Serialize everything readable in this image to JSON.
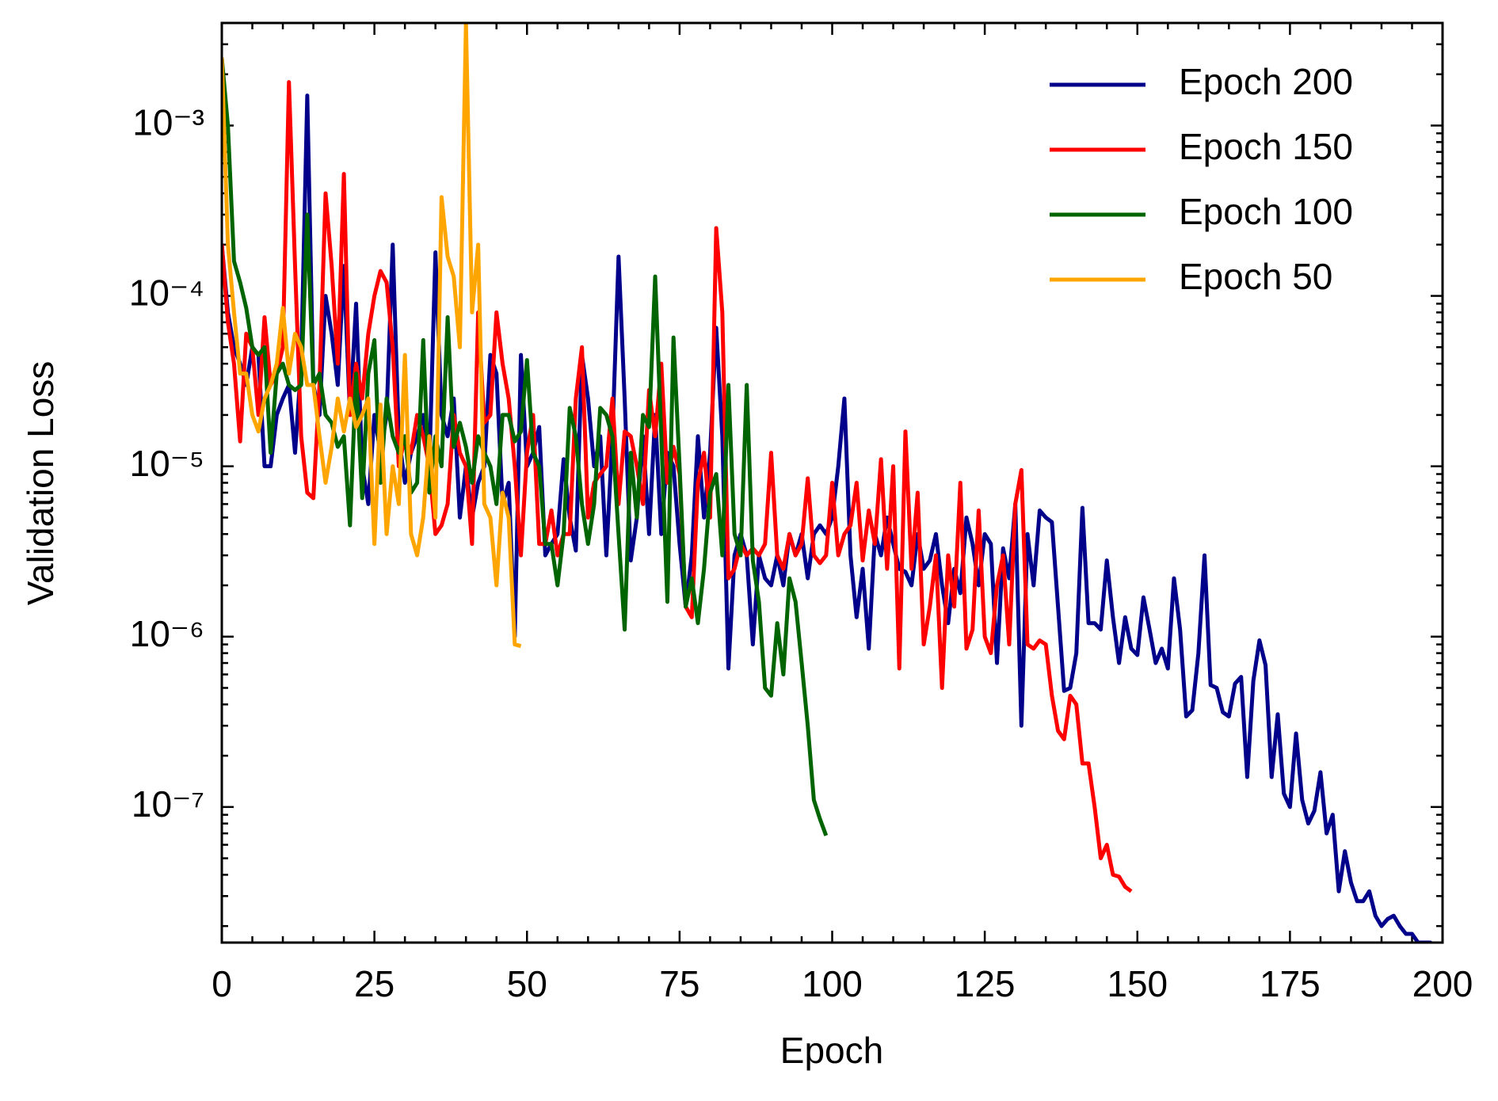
{
  "chart_data": {
    "type": "line",
    "xlabel": "Epoch",
    "ylabel": "Validation Loss",
    "log_y": true,
    "grid": false,
    "legend": "upper right",
    "xlim": [
      0,
      200
    ],
    "xticks": [
      0,
      25,
      50,
      75,
      100,
      125,
      150,
      175,
      200
    ],
    "ylim": [
      1.6e-08,
      0.004
    ],
    "yticks": [
      {
        "value": 1e-07,
        "label": "10⁻⁷"
      },
      {
        "value": 1e-06,
        "label": "10⁻⁶"
      },
      {
        "value": 1e-05,
        "label": "10⁻⁵"
      },
      {
        "value": 0.0001,
        "label": "10⁻⁴"
      },
      {
        "value": 0.001,
        "label": "10⁻³"
      }
    ],
    "x": [
      0,
      1,
      2,
      3,
      4,
      5,
      6,
      7,
      8,
      9,
      10,
      11,
      12,
      13,
      14,
      15,
      16,
      17,
      18,
      19,
      20,
      21,
      22,
      23,
      24,
      25,
      26,
      27,
      28,
      29,
      30,
      31,
      32,
      33,
      34,
      35,
      36,
      37,
      38,
      39,
      40,
      41,
      42,
      43,
      44,
      45,
      46,
      47,
      48,
      49,
      50,
      51,
      52,
      53,
      54,
      55,
      56,
      57,
      58,
      59,
      60,
      61,
      62,
      63,
      64,
      65,
      66,
      67,
      68,
      69,
      70,
      71,
      72,
      73,
      74,
      75,
      76,
      77,
      78,
      79,
      80,
      81,
      82,
      83,
      84,
      85,
      86,
      87,
      88,
      89,
      90,
      91,
      92,
      93,
      94,
      95,
      96,
      97,
      98,
      99,
      100,
      101,
      102,
      103,
      104,
      105,
      106,
      107,
      108,
      109,
      110,
      111,
      112,
      113,
      114,
      115,
      116,
      117,
      118,
      119,
      120,
      121,
      122,
      123,
      124,
      125,
      126,
      127,
      128,
      129,
      130,
      131,
      132,
      133,
      134,
      135,
      136,
      137,
      138,
      139,
      140,
      141,
      142,
      143,
      144,
      145,
      146,
      147,
      148,
      149,
      150,
      151,
      152,
      153,
      154,
      155,
      156,
      157,
      158,
      159,
      160,
      161,
      162,
      163,
      164,
      165,
      166,
      167,
      168,
      169,
      170,
      171,
      172,
      173,
      174,
      175,
      176,
      177,
      178,
      179,
      180,
      181,
      182,
      183,
      184,
      185,
      186,
      187,
      188,
      189,
      190,
      191,
      192,
      193,
      194,
      195,
      196,
      197,
      198,
      199
    ],
    "series": [
      {
        "name": "Epoch 200",
        "color": "#00008b",
        "values": [
          0.0002,
          8e-05,
          5e-05,
          4e-05,
          3e-05,
          5e-05,
          4.5e-05,
          1e-05,
          1e-05,
          2e-05,
          2.5e-05,
          3e-05,
          1.2e-05,
          4e-05,
          0.0015,
          3e-05,
          2e-05,
          0.0001,
          6e-05,
          3e-05,
          0.00015,
          2e-05,
          9e-05,
          1e-05,
          6e-06,
          2e-05,
          1.2e-05,
          2e-05,
          0.0002,
          1.5e-05,
          8e-06,
          1.2e-05,
          1.5e-05,
          2e-05,
          1e-05,
          0.00018,
          2e-05,
          1.5e-05,
          2.5e-05,
          5e-06,
          1e-05,
          5e-06,
          8e-06,
          1e-05,
          4.5e-05,
          3.5e-05,
          6e-06,
          8e-06,
          1e-06,
          4.5e-05,
          1e-05,
          1.2e-05,
          1.7e-05,
          3e-06,
          3.5e-06,
          4e-06,
          1.1e-05,
          5e-06,
          3.2e-06,
          4.5e-05,
          2.5e-05,
          1e-05,
          1.5e-05,
          3e-06,
          1.5e-05,
          0.00017,
          2.5e-05,
          2.8e-06,
          5e-06,
          1.5e-05,
          4e-06,
          2e-05,
          4e-06,
          1.2e-05,
          1e-05,
          3.5e-06,
          1.5e-06,
          3e-06,
          1.5e-05,
          5e-06,
          1.2e-05,
          6.5e-05,
          1.5e-05,
          6.5e-07,
          3e-06,
          4e-06,
          3e-06,
          9e-07,
          3e-06,
          2.2e-06,
          2e-06,
          3e-06,
          2e-06,
          4e-06,
          3e-06,
          4e-06,
          2.2e-06,
          4e-06,
          4.5e-06,
          4e-06,
          5e-06,
          1e-05,
          2.5e-05,
          3e-06,
          1.3e-06,
          2.5e-06,
          8.5e-07,
          4e-06,
          3e-06,
          5e-06,
          3.5e-06,
          2.5e-06,
          2.4e-06,
          2e-06,
          4e-06,
          2.5e-06,
          2.8e-06,
          4e-06,
          2e-06,
          1.2e-06,
          2.5e-06,
          1.8e-06,
          5e-06,
          3.5e-06,
          2e-06,
          4e-06,
          3.5e-06,
          7e-07,
          3.3e-06,
          2.2e-06,
          6e-06,
          3e-07,
          4e-06,
          2e-06,
          5.5e-06,
          5e-06,
          4.7e-06,
          1.5e-06,
          4.8e-07,
          5e-07,
          8e-07,
          5.7e-06,
          1.2e-06,
          1.2e-06,
          1.1e-06,
          2.8e-06,
          1.3e-06,
          7e-07,
          1.3e-06,
          8.5e-07,
          7.8e-07,
          1.7e-06,
          1.1e-06,
          7e-07,
          8.5e-07,
          6.5e-07,
          2.2e-06,
          1.1e-06,
          3.4e-07,
          3.7e-07,
          8e-07,
          3e-06,
          5.2e-07,
          5e-07,
          3.6e-07,
          3.4e-07,
          5.3e-07,
          5.8e-07,
          1.5e-07,
          5.5e-07,
          9.5e-07,
          6.8e-07,
          1.5e-07,
          3.5e-07,
          1.2e-07,
          1e-07,
          2.7e-07,
          1.1e-07,
          8e-08,
          9.5e-08,
          1.6e-07,
          7e-08,
          9e-08,
          3.2e-08,
          5.5e-08,
          3.6e-08,
          2.8e-08,
          2.8e-08,
          3.2e-08,
          2.3e-08,
          2e-08,
          2.2e-08,
          2.3e-08,
          2e-08,
          1.8e-08,
          1.8e-08,
          1.6e-08,
          1.6e-08,
          1.6e-08,
          1.5e-08
        ]
      },
      {
        "name": "Epoch 150",
        "color": "#ff0000",
        "values": [
          0.0002,
          7e-05,
          4e-05,
          1.4e-05,
          6e-05,
          5e-05,
          2e-05,
          7.5e-05,
          3e-05,
          3.5e-05,
          5e-05,
          0.0018,
          0.00015,
          1.5e-05,
          7e-06,
          6.5e-06,
          3e-05,
          0.0004,
          0.00015,
          4e-05,
          0.00052,
          2e-05,
          4e-05,
          2.5e-05,
          6e-05,
          0.0001,
          0.00014,
          0.00012,
          5e-05,
          1e-05,
          1.5e-05,
          1.2e-05,
          2e-05,
          1.5e-05,
          1e-05,
          4e-06,
          4.5e-06,
          6e-06,
          2e-05,
          1.2e-05,
          1e-05,
          3.5e-06,
          8e-05,
          1.8e-05,
          2e-05,
          8e-05,
          4e-05,
          2.5e-05,
          1e-05,
          3e-06,
          1.2e-05,
          2e-05,
          3.5e-06,
          3.5e-06,
          5.5e-06,
          3e-06,
          4e-06,
          4e-06,
          2.5e-05,
          5e-05,
          5e-06,
          8e-06,
          9e-06,
          1e-05,
          2.5e-05,
          6e-06,
          1.6e-05,
          1.5e-05,
          1e-05,
          6e-06,
          2.8e-05,
          1.5e-05,
          4e-05,
          8e-06,
          1.3e-05,
          9e-06,
          1.5e-06,
          1.3e-06,
          8e-06,
          1.2e-05,
          5e-06,
          0.00025,
          8e-05,
          2.2e-06,
          2.5e-06,
          3.5e-06,
          3e-06,
          3.3e-06,
          3e-06,
          3.5e-06,
          1.2e-05,
          3e-06,
          2.5e-06,
          4e-06,
          3e-06,
          3.5e-06,
          8.5e-06,
          3e-06,
          2.7e-06,
          3e-06,
          8e-06,
          3e-06,
          4e-06,
          4.5e-06,
          8e-06,
          2.8e-06,
          5.5e-06,
          3.5e-06,
          1.1e-05,
          2.5e-06,
          1e-05,
          6.5e-07,
          1.6e-05,
          2.5e-06,
          7e-06,
          9e-07,
          1.5e-06,
          3e-06,
          5e-07,
          3e-06,
          1.5e-06,
          8e-06,
          8.5e-07,
          1.1e-06,
          5.5e-06,
          1e-06,
          8e-07,
          2e-06,
          3e-06,
          9e-07,
          6e-06,
          9.5e-06,
          9e-07,
          8.5e-07,
          9.5e-07,
          9e-07,
          4.5e-07,
          2.8e-07,
          2.5e-07,
          4.5e-07,
          4e-07,
          1.8e-07,
          1.8e-07,
          1e-07,
          5e-08,
          6e-08,
          4e-08,
          3.9e-08,
          3.4e-08,
          3.2e-08,
          null,
          null,
          null,
          null,
          null,
          null,
          null,
          null,
          null,
          null,
          null,
          null,
          null,
          null,
          null,
          null,
          null,
          null,
          null,
          null,
          null,
          null,
          null,
          null,
          null,
          null,
          null,
          null,
          null,
          null,
          null,
          null,
          null,
          null,
          null,
          null,
          null,
          null,
          null,
          null,
          null,
          null,
          null,
          null,
          null,
          null,
          null,
          null,
          null,
          null
        ]
      },
      {
        "name": "Epoch 100",
        "color": "#006400",
        "values": [
          0.0025,
          0.001,
          0.00016,
          0.00012,
          8.5e-05,
          5e-05,
          4.5e-05,
          5e-05,
          1.2e-05,
          3.5e-05,
          4e-05,
          3e-05,
          2.8e-05,
          3e-05,
          0.0003,
          3e-05,
          3.5e-05,
          2e-05,
          1.8e-05,
          1.3e-05,
          1.5e-05,
          4.5e-06,
          3.5e-05,
          6.5e-06,
          3.5e-05,
          5.5e-05,
          8e-06,
          2.5e-05,
          1.5e-05,
          1.2e-05,
          1.5e-05,
          7e-06,
          8e-06,
          5.5e-05,
          7e-06,
          1.5e-05,
          1e-05,
          7.5e-05,
          1.3e-05,
          1.8e-05,
          1.3e-05,
          8e-06,
          1.5e-05,
          1.2e-05,
          1e-05,
          6e-06,
          2e-05,
          2e-05,
          1.4e-05,
          1.6e-05,
          4.2e-05,
          1.2e-05,
          1e-05,
          3.5e-06,
          3.5e-06,
          2e-06,
          4e-06,
          2.2e-05,
          1.5e-05,
          6e-06,
          3.5e-06,
          6e-06,
          2.2e-05,
          2e-05,
          1.5e-05,
          4e-06,
          1.1e-06,
          1.2e-05,
          5e-06,
          2e-05,
          1.7e-05,
          0.00013,
          1.5e-05,
          1.6e-06,
          5.7e-05,
          1e-05,
          1.5e-06,
          2.2e-06,
          1.2e-06,
          2.5e-06,
          7e-06,
          9e-06,
          3e-06,
          3e-05,
          4e-06,
          3e-06,
          3e-05,
          2.8e-06,
          1.6e-06,
          5e-07,
          4.5e-07,
          1.2e-06,
          6e-07,
          2.2e-06,
          1.6e-06,
          7e-07,
          3e-07,
          1.1e-07,
          8.5e-08,
          6.8e-08,
          null,
          null,
          null,
          null,
          null,
          null,
          null,
          null,
          null,
          null,
          null,
          null,
          null,
          null,
          null,
          null,
          null,
          null,
          null,
          null,
          null,
          null,
          null,
          null,
          null,
          null,
          null,
          null,
          null,
          null,
          null,
          null,
          null,
          null,
          null,
          null,
          null,
          null,
          null,
          null,
          null,
          null,
          null,
          null,
          null,
          null,
          null,
          null,
          null,
          null,
          null,
          null,
          null,
          null,
          null,
          null,
          null,
          null,
          null,
          null,
          null,
          null,
          null,
          null,
          null,
          null,
          null,
          null,
          null,
          null,
          null,
          null,
          null,
          null,
          null,
          null,
          null,
          null,
          null,
          null,
          null,
          null,
          null,
          null,
          null,
          null,
          null,
          null,
          null,
          null,
          null,
          null,
          null,
          null,
          null,
          null,
          null,
          null,
          null,
          null
        ]
      },
      {
        "name": "Epoch 50",
        "color": "#ffa500",
        "values": [
          0.0025,
          0.0002,
          8e-05,
          3.5e-05,
          3.5e-05,
          2e-05,
          1.6e-05,
          2.5e-05,
          3e-05,
          4e-05,
          8.5e-05,
          3.5e-05,
          6e-05,
          5e-05,
          3e-05,
          3e-05,
          1.5e-05,
          8e-06,
          1.3e-05,
          2.5e-05,
          1.6e-05,
          2.5e-05,
          1.7e-05,
          2e-05,
          2.5e-05,
          3.5e-06,
          2.3e-05,
          4e-06,
          1e-05,
          6e-06,
          4.5e-05,
          4e-06,
          3e-06,
          5e-06,
          1.5e-05,
          5e-06,
          0.00038,
          0.00017,
          0.00013,
          5e-05,
          0.004,
          8e-05,
          0.0002,
          6e-06,
          5e-06,
          2e-06,
          7e-06,
          5e-06,
          9e-07,
          8.8e-07,
          null,
          null,
          null,
          null,
          null,
          null,
          null,
          null,
          null,
          null,
          null,
          null,
          null,
          null,
          null,
          null,
          null,
          null,
          null,
          null,
          null,
          null,
          null,
          null,
          null,
          null,
          null,
          null,
          null,
          null,
          null,
          null,
          null,
          null,
          null,
          null,
          null,
          null,
          null,
          null,
          null,
          null,
          null,
          null,
          null,
          null,
          null,
          null,
          null,
          null,
          null,
          null,
          null,
          null,
          null,
          null,
          null,
          null,
          null,
          null,
          null,
          null,
          null,
          null,
          null,
          null,
          null,
          null,
          null,
          null,
          null,
          null,
          null,
          null,
          null,
          null,
          null,
          null,
          null,
          null,
          null,
          null,
          null,
          null,
          null,
          null,
          null,
          null,
          null,
          null,
          null,
          null,
          null,
          null,
          null,
          null,
          null,
          null,
          null,
          null,
          null,
          null,
          null,
          null,
          null,
          null,
          null,
          null,
          null,
          null,
          null,
          null,
          null,
          null,
          null,
          null,
          null,
          null,
          null,
          null,
          null,
          null,
          null,
          null,
          null,
          null,
          null,
          null,
          null,
          null,
          null,
          null,
          null,
          null,
          null,
          null,
          null,
          null,
          null,
          null,
          null,
          null,
          null,
          null,
          null,
          null,
          null,
          null,
          null,
          null
        ]
      }
    ]
  }
}
